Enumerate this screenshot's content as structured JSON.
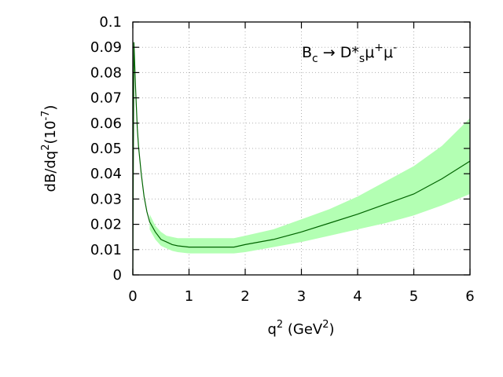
{
  "chart_data": {
    "type": "line",
    "title": "",
    "annotation": {
      "base": "B",
      "base_sub": "c",
      "arrow": " → D*",
      "mid_sub": "s",
      "mu1": "μ",
      "mu1_sup": "+",
      "mu2": "μ",
      "mu2_sup": "-"
    },
    "xlabel": {
      "base": "q",
      "sup": "2",
      "unit_open": " (GeV",
      "unit_sup": "2",
      "unit_close": ")"
    },
    "ylabel": {
      "base": "dB/dq",
      "sup": "2",
      "unit_open": "(10",
      "unit_sup": "-7",
      "unit_close": ")"
    },
    "xlim": [
      0,
      6
    ],
    "ylim": [
      0,
      0.1
    ],
    "x_ticks": [
      "0",
      "1",
      "2",
      "3",
      "4",
      "5",
      "6"
    ],
    "y_ticks": [
      "0",
      "0.01",
      "0.02",
      "0.03",
      "0.04",
      "0.05",
      "0.06",
      "0.07",
      "0.08",
      "0.09",
      "0.1"
    ],
    "grid": true,
    "legend": "none",
    "colors": {
      "line": "#006400",
      "band": "#b3ffb3",
      "grid": "#b0b0b0"
    },
    "series": [
      {
        "x": [
          0.0,
          0.02,
          0.05,
          0.08,
          0.1,
          0.15,
          0.2,
          0.25,
          0.3,
          0.4,
          0.5,
          0.6,
          0.7,
          0.8,
          1.0,
          1.5,
          1.8,
          2.0,
          2.5,
          3.0,
          3.5,
          4.0,
          4.5,
          5.0,
          5.5,
          6.0
        ],
        "y": [
          0.0,
          0.092,
          0.073,
          0.058,
          0.051,
          0.04,
          0.031,
          0.025,
          0.021,
          0.017,
          0.014,
          0.013,
          0.012,
          0.0115,
          0.011,
          0.011,
          0.011,
          0.012,
          0.014,
          0.017,
          0.0205,
          0.024,
          0.028,
          0.032,
          0.038,
          0.045
        ]
      }
    ],
    "band": {
      "x": [
        0.3,
        0.4,
        0.5,
        0.6,
        0.7,
        0.8,
        1.0,
        1.5,
        1.8,
        2.0,
        2.5,
        3.0,
        3.5,
        4.0,
        4.5,
        5.0,
        5.5,
        6.0
      ],
      "lower": [
        0.018,
        0.014,
        0.0115,
        0.0105,
        0.0095,
        0.009,
        0.0085,
        0.0085,
        0.0085,
        0.009,
        0.011,
        0.013,
        0.0155,
        0.018,
        0.0205,
        0.0235,
        0.0275,
        0.032
      ],
      "upper": [
        0.024,
        0.0195,
        0.017,
        0.0155,
        0.015,
        0.0145,
        0.0145,
        0.0145,
        0.0145,
        0.0155,
        0.018,
        0.022,
        0.026,
        0.031,
        0.037,
        0.043,
        0.051,
        0.062
      ]
    }
  }
}
